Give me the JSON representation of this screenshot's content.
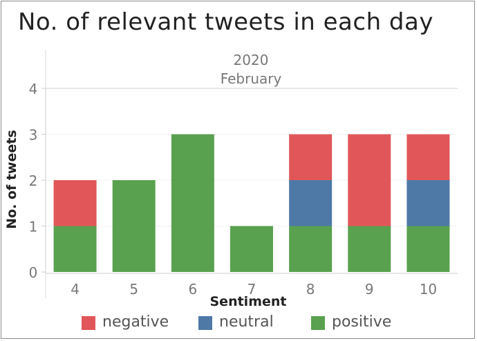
{
  "title": "No. of relevant tweets in each day",
  "chart_data": {
    "type": "bar",
    "stacked": true,
    "header": {
      "year": "2020",
      "month": "February"
    },
    "categories": [
      "4",
      "5",
      "6",
      "7",
      "8",
      "9",
      "10"
    ],
    "series": [
      {
        "name": "positive",
        "color": "#59a14f",
        "values": [
          1,
          2,
          3,
          1,
          1,
          1,
          1
        ]
      },
      {
        "name": "neutral",
        "color": "#4e79a7",
        "values": [
          0,
          0,
          0,
          0,
          1,
          0,
          1
        ]
      },
      {
        "name": "negative",
        "color": "#e15759",
        "values": [
          1,
          0,
          0,
          0,
          1,
          2,
          1
        ]
      }
    ],
    "legend_order": [
      "negative",
      "neutral",
      "positive"
    ],
    "yticks": [
      0,
      1,
      2,
      3,
      4
    ],
    "ylim": [
      0,
      4
    ],
    "xlabel": "Sentiment",
    "ylabel": "No. of tweets",
    "grid": true,
    "legend_position": "bottom"
  }
}
